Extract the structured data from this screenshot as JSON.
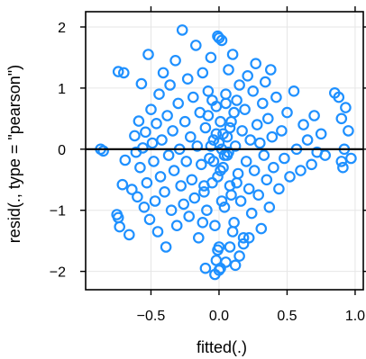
{
  "chart_data": {
    "type": "scatter",
    "title": "",
    "xlabel": "fitted(.)",
    "ylabel": "resid(., type = \"pearson\")",
    "xlim": [
      -0.98,
      1.06
    ],
    "ylim": [
      -2.3,
      2.25
    ],
    "xticks": [
      -0.5,
      0.0,
      0.5,
      1.0
    ],
    "xtick_labels": [
      "−0.5",
      "0.0",
      "0.5",
      "1.0"
    ],
    "yticks": [
      -2,
      -1,
      0,
      1,
      2
    ],
    "ytick_labels": [
      "−2",
      "−1",
      "0",
      "1",
      "2"
    ],
    "grid": true,
    "reference_line_y": 0,
    "marker_color": "#1E90FF",
    "marker": "open-circle",
    "points": [
      [
        -0.87,
        0.0
      ],
      [
        -0.85,
        -0.03
      ],
      [
        -0.74,
        1.27
      ],
      [
        -0.7,
        1.25
      ],
      [
        -0.75,
        -1.07
      ],
      [
        -0.74,
        -1.12
      ],
      [
        -0.73,
        -1.27
      ],
      [
        -0.71,
        -0.58
      ],
      [
        -0.69,
        -0.18
      ],
      [
        -0.66,
        -1.4
      ],
      [
        -0.64,
        -0.66
      ],
      [
        -0.62,
        0.22
      ],
      [
        -0.61,
        -0.05
      ],
      [
        -0.6,
        -0.78
      ],
      [
        -0.59,
        0.46
      ],
      [
        -0.58,
        -0.3
      ],
      [
        -0.57,
        1.07
      ],
      [
        -0.56,
        0.02
      ],
      [
        -0.55,
        -0.95
      ],
      [
        -0.54,
        0.28
      ],
      [
        -0.53,
        -0.55
      ],
      [
        -0.52,
        1.55
      ],
      [
        -0.51,
        -1.15
      ],
      [
        -0.5,
        0.65
      ],
      [
        -0.49,
        0.1
      ],
      [
        -0.48,
        -0.2
      ],
      [
        -0.47,
        -0.85
      ],
      [
        -0.46,
        0.42
      ],
      [
        -0.45,
        -1.35
      ],
      [
        -0.44,
        0.9
      ],
      [
        -0.43,
        -0.45
      ],
      [
        -0.42,
        0.15
      ],
      [
        -0.41,
        1.25
      ],
      [
        -0.4,
        -0.7
      ],
      [
        -0.39,
        -1.6
      ],
      [
        -0.38,
        0.55
      ],
      [
        -0.37,
        -0.1
      ],
      [
        -0.36,
        1.05
      ],
      [
        -0.35,
        -1.0
      ],
      [
        -0.34,
        0.3
      ],
      [
        -0.33,
        -0.35
      ],
      [
        -0.32,
        1.45
      ],
      [
        -0.31,
        -1.25
      ],
      [
        -0.3,
        0.75
      ],
      [
        -0.29,
        0.0
      ],
      [
        -0.28,
        -0.6
      ],
      [
        -0.27,
        1.95
      ],
      [
        -0.26,
        -0.9
      ],
      [
        -0.25,
        0.45
      ],
      [
        -0.24,
        -0.2
      ],
      [
        -0.23,
        1.15
      ],
      [
        -0.22,
        -1.1
      ],
      [
        -0.21,
        0.2
      ],
      [
        -0.2,
        -0.5
      ],
      [
        -0.19,
        0.85
      ],
      [
        -0.18,
        -0.8
      ],
      [
        -0.17,
        1.7
      ],
      [
        -0.16,
        0.05
      ],
      [
        -0.15,
        -1.45
      ],
      [
        -0.14,
        0.6
      ],
      [
        -0.13,
        -0.25
      ],
      [
        -0.12,
        1.25
      ],
      [
        -0.11,
        -0.7
      ],
      [
        -0.1,
        0.35
      ],
      [
        -0.09,
        -1.0
      ],
      [
        -0.08,
        0.95
      ],
      [
        -0.07,
        -0.15
      ],
      [
        -0.06,
        1.5
      ],
      [
        -0.05,
        -0.55
      ],
      [
        -0.04,
        0.15
      ],
      [
        -0.03,
        -1.25
      ],
      [
        -0.02,
        0.7
      ],
      [
        -0.01,
        1.85
      ],
      [
        0.0,
        1.82
      ],
      [
        0.01,
        -0.35
      ],
      [
        0.02,
        1.78
      ],
      [
        0.03,
        0.25
      ],
      [
        0.04,
        -0.95
      ],
      [
        0.05,
        0.9
      ],
      [
        0.06,
        -0.1
      ],
      [
        0.07,
        1.3
      ],
      [
        0.08,
        -0.6
      ],
      [
        0.09,
        0.45
      ],
      [
        0.1,
        1.55
      ],
      [
        0.11,
        -1.2
      ],
      [
        0.12,
        0.05
      ],
      [
        0.13,
        0.8
      ],
      [
        0.14,
        -0.4
      ],
      [
        0.15,
        1.05
      ],
      [
        0.16,
        -0.85
      ],
      [
        0.17,
        0.3
      ],
      [
        0.18,
        -1.45
      ],
      [
        0.19,
        0.65
      ],
      [
        0.2,
        -0.2
      ],
      [
        0.21,
        1.2
      ],
      [
        0.22,
        -0.65
      ],
      [
        0.23,
        0.15
      ],
      [
        0.24,
        -1.05
      ],
      [
        0.25,
        0.95
      ],
      [
        0.26,
        -0.35
      ],
      [
        0.27,
        1.4
      ],
      [
        0.28,
        0.4
      ],
      [
        0.29,
        -0.75
      ],
      [
        0.3,
        0.1
      ],
      [
        0.31,
        -1.3
      ],
      [
        0.32,
        0.75
      ],
      [
        0.33,
        -0.1
      ],
      [
        0.34,
        1.1
      ],
      [
        0.35,
        -0.5
      ],
      [
        0.36,
        0.5
      ],
      [
        0.37,
        -0.95
      ],
      [
        0.38,
        1.3
      ],
      [
        0.39,
        0.2
      ],
      [
        0.4,
        -0.3
      ],
      [
        0.42,
        0.85
      ],
      [
        0.44,
        -0.65
      ],
      [
        0.46,
        0.3
      ],
      [
        0.48,
        -0.15
      ],
      [
        0.5,
        0.6
      ],
      [
        0.52,
        -0.45
      ],
      [
        0.55,
        0.95
      ],
      [
        0.57,
        0.0
      ],
      [
        0.6,
        -0.35
      ],
      [
        0.62,
        0.4
      ],
      [
        0.65,
        0.15
      ],
      [
        0.68,
        -0.25
      ],
      [
        0.7,
        0.55
      ],
      [
        0.72,
        -0.05
      ],
      [
        0.75,
        0.25
      ],
      [
        0.78,
        -0.1
      ],
      [
        0.85,
        0.92
      ],
      [
        0.88,
        0.85
      ],
      [
        0.9,
        0.5
      ],
      [
        0.9,
        -0.2
      ],
      [
        0.91,
        -0.3
      ],
      [
        0.92,
        0.0
      ],
      [
        0.93,
        0.68
      ],
      [
        0.95,
        0.3
      ],
      [
        0.97,
        -0.15
      ],
      [
        -0.01,
        -1.65
      ],
      [
        0.0,
        -1.6
      ],
      [
        -0.02,
        -1.82
      ],
      [
        0.01,
        -1.95
      ],
      [
        -0.03,
        -2.05
      ],
      [
        0.0,
        -1.98
      ],
      [
        0.05,
        -1.85
      ],
      [
        0.08,
        -1.6
      ],
      [
        0.1,
        -1.35
      ],
      [
        0.12,
        -1.9
      ],
      [
        0.15,
        -1.75
      ],
      [
        0.18,
        -1.55
      ],
      [
        0.22,
        -1.45
      ],
      [
        -0.1,
        -1.95
      ],
      [
        -0.12,
        -1.2
      ],
      [
        0.0,
        0.1
      ],
      [
        0.02,
        0.0
      ],
      [
        0.04,
        -0.1
      ],
      [
        0.06,
        0.2
      ],
      [
        -0.02,
        0.25
      ],
      [
        -0.04,
        -0.2
      ],
      [
        0.08,
        0.35
      ],
      [
        0.03,
        -0.3
      ],
      [
        -0.06,
        0.05
      ],
      [
        0.07,
        -0.05
      ],
      [
        0.01,
        0.45
      ],
      [
        -0.01,
        -0.45
      ],
      [
        0.11,
        0.6
      ],
      [
        -0.08,
        0.55
      ],
      [
        0.13,
        -0.55
      ],
      [
        -0.11,
        -0.6
      ],
      [
        0.05,
        0.75
      ],
      [
        -0.05,
        0.8
      ],
      [
        0.09,
        -0.75
      ],
      [
        0.02,
        -0.85
      ]
    ]
  }
}
